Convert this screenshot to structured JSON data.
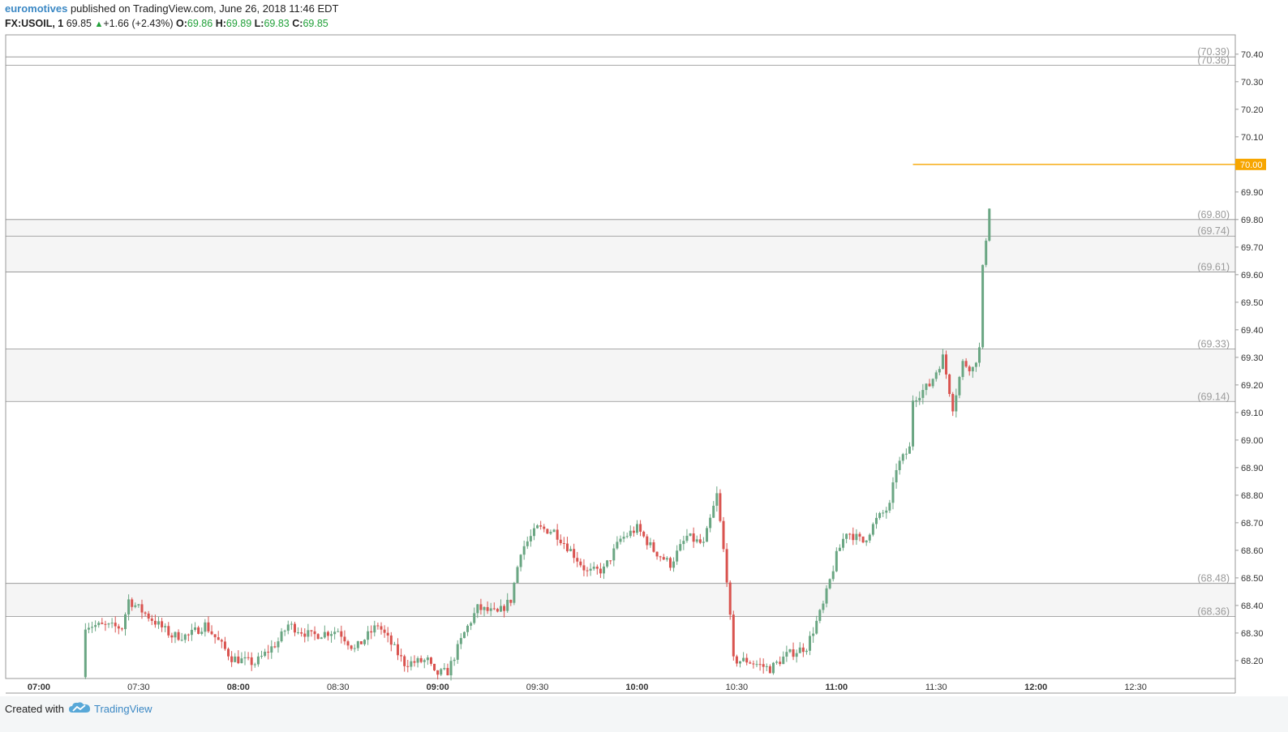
{
  "header": {
    "author": "euromotives",
    "published": "published on TradingView.com, June 26, 2018 11:46 EDT",
    "symbol": "FX:USOIL, 1",
    "last": "69.85",
    "change": "+1.66 (+2.43%)",
    "o_label": "O:",
    "o_value": "69.86",
    "h_label": "H:",
    "h_value": "69.89",
    "l_label": "L:",
    "l_value": "69.83",
    "c_label": "C:",
    "c_value": "69.85"
  },
  "footer": {
    "created_with": "Created with",
    "brand": "TradingView"
  },
  "colors": {
    "up": "#6aa683",
    "down": "#d9534f",
    "accent": "#f7a600",
    "grid_border": "#9a9a9a",
    "zone_fill": "#f5f5f5",
    "brand": "#3b88c4"
  },
  "chart_data": {
    "type": "candlestick",
    "x_range": [
      "06:50",
      "13:00"
    ],
    "ylim": [
      68.135,
      70.47
    ],
    "y_ticks": [
      "70.40",
      "70.30",
      "70.20",
      "70.10",
      "70.00",
      "69.90",
      "69.80",
      "69.70",
      "69.60",
      "69.50",
      "69.40",
      "69.30",
      "69.20",
      "69.10",
      "69.00",
      "68.90",
      "68.80",
      "68.70",
      "68.60",
      "68.50",
      "68.40",
      "68.30",
      "68.20"
    ],
    "x_ticks": [
      {
        "label": "07:00",
        "bold": true
      },
      {
        "label": "07:30",
        "bold": false
      },
      {
        "label": "08:00",
        "bold": true
      },
      {
        "label": "08:30",
        "bold": false
      },
      {
        "label": "09:00",
        "bold": true
      },
      {
        "label": "09:30",
        "bold": false
      },
      {
        "label": "10:00",
        "bold": true
      },
      {
        "label": "10:30",
        "bold": false
      },
      {
        "label": "11:00",
        "bold": true
      },
      {
        "label": "11:30",
        "bold": false
      },
      {
        "label": "12:00",
        "bold": true
      },
      {
        "label": "12:30",
        "bold": false
      }
    ],
    "levels": [
      {
        "value": 70.39,
        "label": "(70.39)"
      },
      {
        "value": 70.36,
        "label": "(70.36)"
      },
      {
        "value": 69.8,
        "label": "(69.80)"
      },
      {
        "value": 69.74,
        "label": "(69.74)"
      },
      {
        "value": 69.61,
        "label": "(69.61)"
      },
      {
        "value": 69.33,
        "label": "(69.33)"
      },
      {
        "value": 69.14,
        "label": "(69.14)"
      },
      {
        "value": 68.48,
        "label": "(68.48)"
      },
      {
        "value": 68.36,
        "label": "(68.36)"
      }
    ],
    "zones": [
      [
        69.74,
        69.8
      ],
      [
        69.61,
        69.74
      ],
      [
        69.14,
        69.33
      ],
      [
        68.36,
        68.48
      ]
    ],
    "horizontal_line": {
      "value": 70.0,
      "label": "70.00",
      "from_time": "11:23"
    },
    "anchors": [
      [
        "07:13",
        68.14
      ],
      [
        "07:14",
        68.33
      ],
      [
        "07:25",
        68.32
      ],
      [
        "07:27",
        68.42
      ],
      [
        "07:31",
        68.38
      ],
      [
        "07:40",
        68.29
      ],
      [
        "07:45",
        68.29
      ],
      [
        "07:50",
        68.33
      ],
      [
        "07:58",
        68.21
      ],
      [
        "08:05",
        68.19
      ],
      [
        "08:12",
        68.27
      ],
      [
        "08:15",
        68.33
      ],
      [
        "08:22",
        68.29
      ],
      [
        "08:30",
        68.31
      ],
      [
        "08:35",
        68.24
      ],
      [
        "08:42",
        68.33
      ],
      [
        "08:50",
        68.19
      ],
      [
        "08:57",
        68.2
      ],
      [
        "08:59",
        68.15
      ],
      [
        "09:03",
        68.16
      ],
      [
        "09:08",
        68.3
      ],
      [
        "09:12",
        68.39
      ],
      [
        "09:18",
        68.37
      ],
      [
        "09:22",
        68.42
      ],
      [
        "09:25",
        68.6
      ],
      [
        "09:30",
        68.68
      ],
      [
        "09:35",
        68.67
      ],
      [
        "09:40",
        68.6
      ],
      [
        "09:45",
        68.52
      ],
      [
        "09:50",
        68.53
      ],
      [
        "09:55",
        68.64
      ],
      [
        "10:00",
        68.68
      ],
      [
        "10:05",
        68.6
      ],
      [
        "10:10",
        68.55
      ],
      [
        "10:15",
        68.65
      ],
      [
        "10:20",
        68.62
      ],
      [
        "10:24",
        68.8
      ],
      [
        "10:27",
        68.5
      ],
      [
        "10:29",
        68.2
      ],
      [
        "10:33",
        68.2
      ],
      [
        "10:40",
        68.17
      ],
      [
        "10:45",
        68.22
      ],
      [
        "10:51",
        68.25
      ],
      [
        "10:56",
        68.4
      ],
      [
        "11:00",
        68.58
      ],
      [
        "11:03",
        68.67
      ],
      [
        "11:08",
        68.63
      ],
      [
        "11:12",
        68.71
      ],
      [
        "11:16",
        68.76
      ],
      [
        "11:18",
        68.9
      ],
      [
        "11:22",
        68.97
      ],
      [
        "11:23",
        69.15
      ],
      [
        "11:28",
        69.2
      ],
      [
        "11:32",
        69.3
      ],
      [
        "11:35",
        69.12
      ],
      [
        "11:38",
        69.28
      ],
      [
        "11:41",
        69.26
      ],
      [
        "11:43",
        69.33
      ],
      [
        "11:44",
        69.62
      ],
      [
        "11:46",
        69.85
      ]
    ]
  }
}
